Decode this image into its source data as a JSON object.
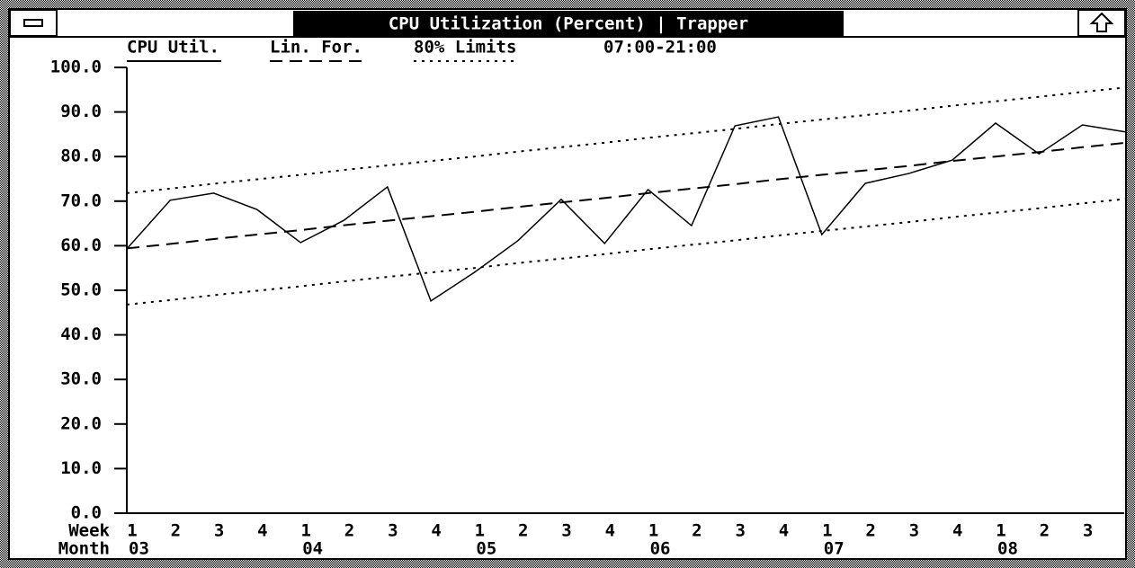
{
  "chart_data": {
    "type": "line",
    "title": "CPU Utilization (Percent) | Trapper",
    "time_range": "07:00-21:00",
    "x_row_labels": [
      "Week",
      "Month"
    ],
    "categories": [
      "1",
      "2",
      "3",
      "4",
      "1",
      "2",
      "3",
      "4",
      "1",
      "2",
      "3",
      "4",
      "1",
      "2",
      "3",
      "4",
      "1",
      "2",
      "3",
      "4",
      "1",
      "2",
      "3",
      null
    ],
    "months": [
      "03",
      null,
      null,
      null,
      "04",
      null,
      null,
      null,
      "05",
      null,
      null,
      null,
      "06",
      null,
      null,
      null,
      "07",
      null,
      null,
      null,
      "08",
      null,
      null,
      null
    ],
    "ylim": [
      0,
      100
    ],
    "yticks": [
      {
        "value": 0,
        "label": "0.0"
      },
      {
        "value": 10,
        "label": "10.0"
      },
      {
        "value": 20,
        "label": "20.0"
      },
      {
        "value": 30,
        "label": "30.0"
      },
      {
        "value": 40,
        "label": "40.0"
      },
      {
        "value": 50,
        "label": "50.0"
      },
      {
        "value": 60,
        "label": "60.0"
      },
      {
        "value": 70,
        "label": "70.0"
      },
      {
        "value": 80,
        "label": "80.0"
      },
      {
        "value": 90,
        "label": "90.0"
      },
      {
        "value": 100,
        "label": "100.0"
      }
    ],
    "series": [
      {
        "name": "CPU Util.",
        "color": "#000000",
        "dash": "solid",
        "values": [
          59.3,
          70.2,
          71.8,
          68.1,
          60.7,
          65.7,
          73.2,
          47.6,
          54.0,
          61.1,
          70.4,
          60.5,
          72.6,
          64.5,
          86.9,
          88.9,
          62.5,
          74.0,
          76.2,
          79.2,
          87.5,
          80.6,
          87.1,
          85.5
        ]
      },
      {
        "name": "Lin. For.",
        "color": "#000000",
        "dash": "dashed",
        "values": [
          59.4,
          60.4,
          61.5,
          62.5,
          63.5,
          64.6,
          65.6,
          66.6,
          67.6,
          68.7,
          69.7,
          70.7,
          71.8,
          72.8,
          73.8,
          74.9,
          75.9,
          76.9,
          77.9,
          79.0,
          80.0,
          81.0,
          82.1,
          83.1
        ]
      },
      {
        "name": "80% Limits",
        "color": "#000000",
        "dash": "dotted",
        "values": [
          71.8,
          72.8,
          73.9,
          74.9,
          75.9,
          77.0,
          78.0,
          79.0,
          80.0,
          81.1,
          82.1,
          83.1,
          84.2,
          85.2,
          86.2,
          87.3,
          88.3,
          89.3,
          90.3,
          91.4,
          92.4,
          93.4,
          94.5,
          95.5
        ]
      },
      {
        "color": "#000000",
        "dash": "dotted",
        "values": [
          46.8,
          47.8,
          48.9,
          49.9,
          50.9,
          52.0,
          53.0,
          54.0,
          55.0,
          56.1,
          57.1,
          58.1,
          59.2,
          60.2,
          61.2,
          62.3,
          63.3,
          64.3,
          65.3,
          66.4,
          67.4,
          68.4,
          69.5,
          70.5
        ]
      }
    ]
  }
}
